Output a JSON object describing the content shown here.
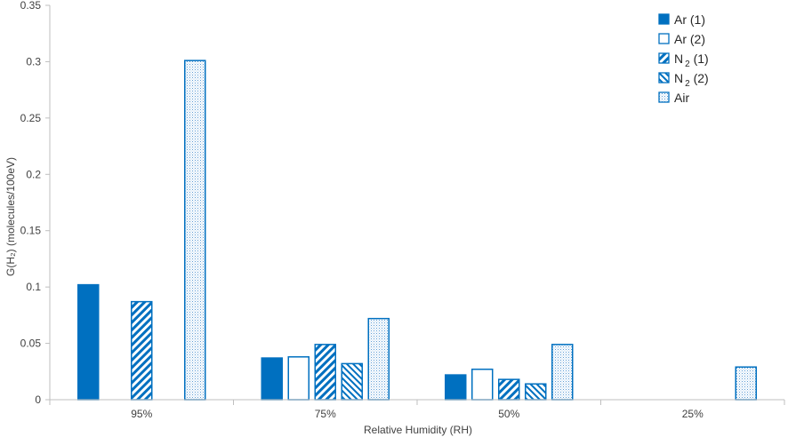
{
  "chart_data": {
    "type": "bar",
    "xlabel": "Relative Humidity (RH)",
    "ylabel": "G(H₂) (molecules/100eV)",
    "ylim": [
      0,
      0.35
    ],
    "yticks": [
      "0",
      "0.05",
      "0.1",
      "0.15",
      "0.2",
      "0.25",
      "0.3",
      "0.35"
    ],
    "categories": [
      "95%",
      "75%",
      "50%",
      "25%"
    ],
    "series": [
      {
        "name": "Ar (1)",
        "legend_main": "Ar",
        "legend_sub": "",
        "legend_tail": " (1)",
        "pattern": "solid",
        "values": [
          0.102,
          0.037,
          0.022,
          null
        ]
      },
      {
        "name": "Ar (2)",
        "legend_main": "Ar",
        "legend_sub": "",
        "legend_tail": " (2)",
        "pattern": "hollow",
        "values": [
          null,
          0.038,
          0.027,
          null
        ]
      },
      {
        "name": "N2 (1)",
        "legend_main": "N",
        "legend_sub": "2",
        "legend_tail": " (1)",
        "pattern": "wide-diagonal",
        "values": [
          0.087,
          0.049,
          0.018,
          null
        ]
      },
      {
        "name": "N2 (2)",
        "legend_main": "N",
        "legend_sub": "2",
        "legend_tail": " (2)",
        "pattern": "narrow-diagonal",
        "values": [
          null,
          0.032,
          0.014,
          null
        ]
      },
      {
        "name": "Air",
        "legend_main": "Air",
        "legend_sub": "",
        "legend_tail": "",
        "pattern": "dotted",
        "values": [
          0.301,
          0.072,
          0.049,
          0.029
        ]
      }
    ],
    "legend_position": "top-right",
    "grid": false,
    "colors": {
      "bar": "#0070c0",
      "axis": "#bfbfbf",
      "text": "#404040"
    }
  }
}
